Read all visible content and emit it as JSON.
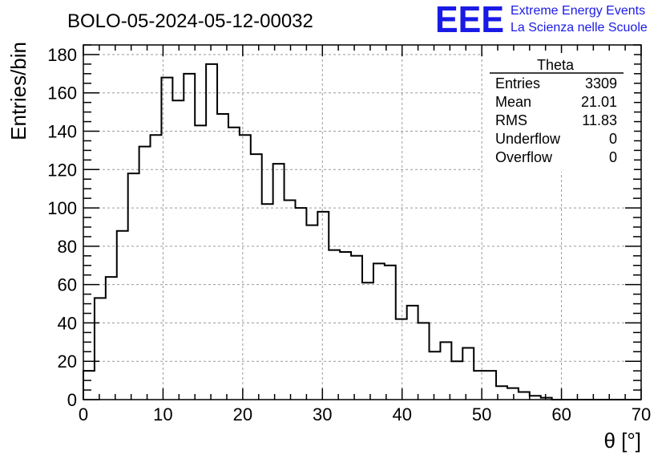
{
  "logo": {
    "mark": "EEE",
    "line1": "Extreme Energy Events",
    "line2": "La Scienza nelle Scuole",
    "color": "#1a1ae6"
  },
  "stats": {
    "name": "Theta",
    "rows": [
      {
        "label": "Entries",
        "value": "3309"
      },
      {
        "label": "Mean",
        "value": "21.01"
      },
      {
        "label": "RMS",
        "value": "11.83"
      },
      {
        "label": "Underflow",
        "value": "0"
      },
      {
        "label": "Overflow",
        "value": "0"
      }
    ]
  },
  "chart_data": {
    "type": "bar",
    "title": "BOLO-05-2024-05-12-00032",
    "xlabel": "θ [°]",
    "ylabel": "Entries/bin",
    "xlim": [
      0,
      70
    ],
    "ylim": [
      0,
      185
    ],
    "xticks": [
      0,
      10,
      20,
      30,
      40,
      50,
      60,
      70
    ],
    "yticks": [
      0,
      20,
      40,
      60,
      80,
      100,
      120,
      140,
      160,
      180
    ],
    "grid": true,
    "bin_width": 1.4,
    "values": [
      15,
      53,
      64,
      88,
      118,
      132,
      138,
      168,
      156,
      170,
      143,
      175,
      149,
      142,
      138,
      128,
      102,
      123,
      104,
      100,
      91,
      98,
      78,
      77,
      75,
      61,
      71,
      70,
      42,
      49,
      40,
      25,
      30,
      20,
      27,
      15,
      15,
      7,
      6,
      4,
      2,
      1,
      0,
      0,
      0,
      0,
      0,
      0,
      0,
      0
    ]
  }
}
